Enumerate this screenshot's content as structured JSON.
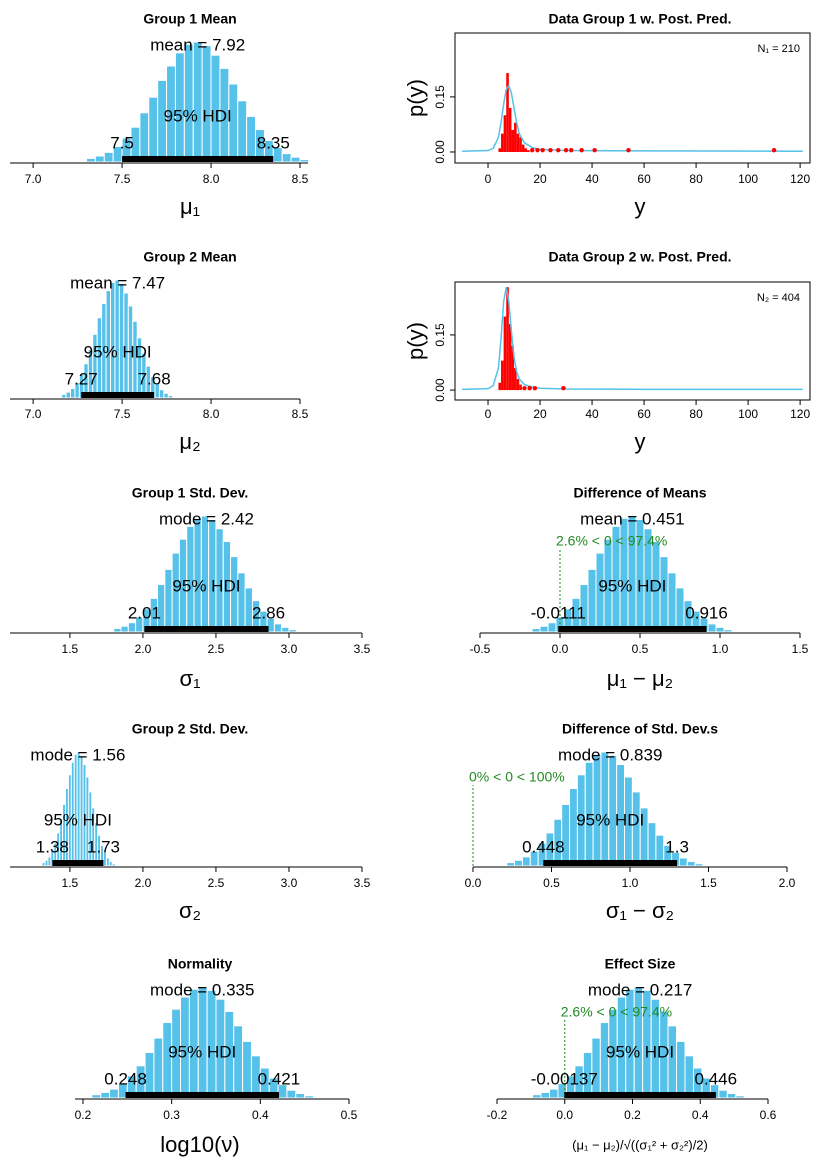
{
  "chart_data": [
    {
      "type": "histogram",
      "title": "Group 1 Mean",
      "xlabel": "μ₁",
      "color": "#56c1e9",
      "xlim": [
        6.87,
        8.545
      ],
      "xticks": [
        {
          "value": 7,
          "label": "7.0"
        },
        7.5,
        {
          "value": 8,
          "label": "8.0"
        },
        8.5
      ],
      "ylim": [
        0,
        100
      ],
      "bins": [
        7.3,
        7.35,
        7.4,
        7.45,
        7.5,
        7.55,
        7.6,
        7.65,
        7.7,
        7.75,
        7.8,
        7.85,
        7.9,
        7.95,
        8.0,
        8.05,
        8.1,
        8.15,
        8.2,
        8.25,
        8.3,
        8.35,
        8.4,
        8.45,
        8.5,
        8.55
      ],
      "counts": [
        3,
        5,
        8,
        13,
        20,
        29,
        41,
        54,
        68,
        80,
        91,
        98,
        100,
        97,
        89,
        78,
        65,
        51,
        38,
        27,
        18,
        12,
        7,
        4,
        2
      ],
      "center_label": "mean = 7.92",
      "hdi_label": "95% HDI",
      "hdi": [
        7.5,
        8.35
      ]
    },
    {
      "type": "predictive",
      "title": "Data Group 1 w. Post. Pred.",
      "xlabel": "y",
      "ylabel": "p(y)",
      "n_label": "N₁ = 210",
      "xlim": [
        -12.7,
        123.8
      ],
      "xticks": [
        0,
        20,
        40,
        60,
        80,
        100,
        120
      ],
      "ylim": [
        -0.03,
        0.324
      ],
      "yticks": [
        {
          "value": 0,
          "label": "0.00"
        },
        0.15
      ],
      "color": "#ff0000",
      "line_color": "#56c1e9",
      "bins": [
        4,
        5,
        6,
        7,
        8,
        9,
        10,
        11,
        12,
        13,
        14,
        15,
        16
      ],
      "counts": [
        0.01,
        0.05,
        0.1,
        0.215,
        0.12,
        0.06,
        0.08,
        0.05,
        0.04,
        0.02,
        0.01,
        0.005
      ],
      "points": {
        "x": [
          17,
          19,
          21,
          24,
          27,
          30,
          32,
          36,
          41,
          54,
          110
        ],
        "y": [
          0.005,
          0.005,
          0.005,
          0.005,
          0.005,
          0.005,
          0.005,
          0.005,
          0.005,
          0.005,
          0.005
        ]
      },
      "line": {
        "x": [
          -10,
          0,
          2,
          4,
          5,
          6,
          7,
          8,
          9,
          10,
          11,
          12,
          14,
          17,
          20,
          30,
          60,
          121
        ],
        "y": [
          0.002,
          0.004,
          0.01,
          0.04,
          0.08,
          0.13,
          0.17,
          0.18,
          0.16,
          0.12,
          0.08,
          0.05,
          0.025,
          0.012,
          0.007,
          0.004,
          0.003,
          0.002
        ]
      }
    },
    {
      "type": "histogram",
      "title": "Group 2 Mean",
      "xlabel": "μ₂",
      "color": "#56c1e9",
      "xlim": [
        6.87,
        8.5
      ],
      "xticks": [
        {
          "value": 7,
          "label": "7.0"
        },
        7.5,
        {
          "value": 8,
          "label": "8.0"
        },
        8.5
      ],
      "ylim": [
        0,
        100
      ],
      "bins": [
        7.16,
        7.185,
        7.21,
        7.235,
        7.26,
        7.285,
        7.31,
        7.335,
        7.36,
        7.385,
        7.41,
        7.435,
        7.46,
        7.485,
        7.51,
        7.535,
        7.56,
        7.585,
        7.61,
        7.635,
        7.66,
        7.685,
        7.71,
        7.735,
        7.76,
        7.785
      ],
      "counts": [
        3,
        5,
        8,
        13,
        20,
        29,
        41,
        54,
        68,
        80,
        91,
        98,
        100,
        97,
        89,
        78,
        65,
        51,
        38,
        27,
        18,
        12,
        7,
        4,
        2
      ],
      "center_label": "mean = 7.47",
      "hdi_label": "95% HDI",
      "hdi": [
        7.27,
        7.68
      ]
    },
    {
      "type": "predictive",
      "title": "Data Group 2 w. Post. Pred.",
      "xlabel": "y",
      "ylabel": "p(y)",
      "n_label": "N₂ = 404",
      "xlim": [
        -12.7,
        123.8
      ],
      "xticks": [
        0,
        20,
        40,
        60,
        80,
        100,
        120
      ],
      "ylim": [
        -0.027,
        0.294
      ],
      "yticks": [
        {
          "value": 0,
          "label": "0.00"
        },
        0.15
      ],
      "color": "#ff0000",
      "line_color": "#56c1e9",
      "bins": [
        4,
        5,
        6,
        7,
        8,
        9,
        10,
        11,
        12,
        13
      ],
      "counts": [
        0.02,
        0.08,
        0.2,
        0.28,
        0.18,
        0.12,
        0.06,
        0.03,
        0.015
      ],
      "points": {
        "x": [
          14,
          16,
          18,
          29
        ],
        "y": [
          0.005,
          0.005,
          0.005,
          0.005
        ]
      },
      "line": {
        "x": [
          -10,
          0,
          2,
          4,
          5,
          6,
          7,
          8,
          9,
          10,
          11,
          12,
          14,
          17,
          20,
          30,
          60,
          121
        ],
        "y": [
          0.002,
          0.004,
          0.012,
          0.06,
          0.14,
          0.24,
          0.28,
          0.24,
          0.16,
          0.09,
          0.05,
          0.03,
          0.015,
          0.008,
          0.005,
          0.003,
          0.002,
          0.002
        ]
      }
    },
    {
      "type": "histogram",
      "title": "Group 1 Std. Dev.",
      "xlabel": "σ₁",
      "color": "#56c1e9",
      "xlim": [
        1.09,
        3.5
      ],
      "xticks": [
        1.5,
        {
          "value": 2,
          "label": "2.0"
        },
        2.5,
        {
          "value": 3,
          "label": "3.0"
        },
        3.5
      ],
      "ylim": [
        0,
        100
      ],
      "bins": [
        1.8,
        1.85,
        1.9,
        1.95,
        2.0,
        2.05,
        2.1,
        2.15,
        2.2,
        2.25,
        2.3,
        2.35,
        2.4,
        2.45,
        2.5,
        2.55,
        2.6,
        2.65,
        2.7,
        2.75,
        2.8,
        2.85,
        2.9,
        2.95,
        3.0,
        3.05
      ],
      "counts": [
        3,
        5,
        8,
        13,
        20,
        29,
        41,
        54,
        68,
        80,
        91,
        98,
        100,
        97,
        89,
        78,
        65,
        51,
        38,
        27,
        18,
        12,
        7,
        4,
        2
      ],
      "center_label": "mode = 2.42",
      "hdi_label": "95% HDI",
      "hdi": [
        2.01,
        2.86
      ]
    },
    {
      "type": "histogram",
      "title": "Difference of Means",
      "xlabel": "μ₁ − μ₂",
      "color": "#56c1e9",
      "xlim": [
        -0.5,
        1.5
      ],
      "xticks": [
        -0.5,
        {
          "value": 0,
          "label": "0.0"
        },
        0.5,
        {
          "value": 1,
          "label": "1.0"
        },
        1.5
      ],
      "ylim": [
        0,
        100
      ],
      "bins": [
        -0.175,
        -0.125,
        -0.075,
        -0.025,
        0.025,
        0.075,
        0.125,
        0.175,
        0.225,
        0.275,
        0.325,
        0.375,
        0.425,
        0.475,
        0.525,
        0.575,
        0.625,
        0.675,
        0.725,
        0.775,
        0.825,
        0.875,
        0.925,
        0.975,
        1.025,
        1.075
      ],
      "counts": [
        3,
        5,
        8,
        13,
        20,
        29,
        41,
        54,
        68,
        80,
        91,
        98,
        100,
        97,
        89,
        78,
        65,
        51,
        38,
        27,
        18,
        12,
        7,
        4,
        2
      ],
      "center_label": "mean = 0.451",
      "hdi_label": "95% HDI",
      "hdi": [
        -0.0111,
        0.916
      ],
      "comp_value": 0,
      "comp_label": "2.6% < 0 < 97.4%"
    },
    {
      "type": "histogram",
      "title": "Group 2 Std. Dev.",
      "xlabel": "σ₂",
      "color": "#56c1e9",
      "xlim": [
        1.09,
        3.5
      ],
      "xticks": [
        1.5,
        {
          "value": 2,
          "label": "2.0"
        },
        2.5,
        {
          "value": 3,
          "label": "3.0"
        },
        3.5
      ],
      "ylim": [
        0,
        100
      ],
      "bins": [
        1.31,
        1.33,
        1.35,
        1.37,
        1.39,
        1.41,
        1.43,
        1.45,
        1.47,
        1.49,
        1.51,
        1.53,
        1.55,
        1.57,
        1.59,
        1.61,
        1.63,
        1.65,
        1.67,
        1.69,
        1.71,
        1.73,
        1.75,
        1.77,
        1.79,
        1.81
      ],
      "counts": [
        3,
        5,
        8,
        13,
        20,
        29,
        41,
        54,
        68,
        80,
        91,
        98,
        100,
        97,
        89,
        78,
        65,
        51,
        38,
        27,
        18,
        12,
        7,
        4,
        2
      ],
      "center_label": "mode = 1.56",
      "hdi_label": "95% HDI",
      "hdi": [
        1.38,
        1.73
      ]
    },
    {
      "type": "histogram",
      "title": "Difference of Std. Dev.s",
      "xlabel": "σ₁ − σ₂",
      "color": "#56c1e9",
      "xlim": [
        0,
        2
      ],
      "xticks": [
        {
          "value": 0,
          "label": "0.0"
        },
        0.5,
        {
          "value": 1,
          "label": "1.0"
        },
        1.5,
        {
          "value": 2,
          "label": "2.0"
        }
      ],
      "ylim": [
        0,
        100
      ],
      "bins": [
        0.215,
        0.265,
        0.315,
        0.365,
        0.415,
        0.465,
        0.515,
        0.565,
        0.615,
        0.665,
        0.715,
        0.765,
        0.815,
        0.865,
        0.915,
        0.965,
        1.015,
        1.065,
        1.115,
        1.165,
        1.215,
        1.265,
        1.315,
        1.365,
        1.415,
        1.465
      ],
      "counts": [
        3,
        5,
        8,
        13,
        20,
        29,
        41,
        54,
        68,
        80,
        91,
        98,
        100,
        97,
        89,
        78,
        65,
        51,
        38,
        27,
        18,
        12,
        7,
        4,
        2
      ],
      "center_label": "mode = 0.839",
      "hdi_label": "95% HDI",
      "hdi": [
        0.448,
        1.3
      ],
      "comp_value": 0,
      "comp_label": "0% < 0 < 100%"
    },
    {
      "type": "histogram",
      "title": "Normality",
      "xlabel": "log10(ν)",
      "color": "#56c1e9",
      "xlim": [
        0.191,
        0.5
      ],
      "xticks": [
        0.2,
        0.3,
        0.4,
        0.5
      ],
      "ylim": [
        0,
        100
      ],
      "bins": [
        0.21,
        0.22,
        0.23,
        0.24,
        0.25,
        0.26,
        0.27,
        0.28,
        0.29,
        0.3,
        0.31,
        0.32,
        0.33,
        0.34,
        0.35,
        0.36,
        0.37,
        0.38,
        0.39,
        0.4,
        0.41,
        0.42,
        0.43,
        0.44,
        0.45,
        0.46
      ],
      "counts": [
        3,
        5,
        8,
        13,
        20,
        29,
        41,
        54,
        68,
        80,
        91,
        98,
        100,
        97,
        89,
        78,
        65,
        51,
        38,
        27,
        18,
        12,
        7,
        4,
        2
      ],
      "center_label": "mode = 0.335",
      "hdi_label": "95% HDI",
      "hdi": [
        0.248,
        0.421
      ]
    },
    {
      "type": "histogram",
      "title": "Effect Size",
      "xlabel": "(μ₁ − μ₂)/√((σ₁² + σ₂²)/2)",
      "color": "#56c1e9",
      "xlim": [
        -0.2,
        0.6
      ],
      "xticks": [
        -0.2,
        {
          "value": 0,
          "label": "0.0"
        },
        0.2,
        0.4,
        0.6
      ],
      "ylim": [
        0,
        100
      ],
      "bins": [
        -0.095,
        -0.07,
        -0.045,
        -0.02,
        0.005,
        0.03,
        0.055,
        0.08,
        0.105,
        0.13,
        0.155,
        0.18,
        0.205,
        0.23,
        0.255,
        0.28,
        0.305,
        0.33,
        0.355,
        0.38,
        0.405,
        0.43,
        0.455,
        0.48,
        0.505,
        0.53
      ],
      "counts": [
        3,
        5,
        8,
        13,
        20,
        29,
        41,
        54,
        68,
        80,
        91,
        98,
        100,
        97,
        89,
        78,
        65,
        51,
        38,
        27,
        18,
        12,
        7,
        4,
        2
      ],
      "center_label": "mode = 0.217",
      "hdi_label": "95% HDI",
      "hdi": [
        -0.00137,
        0.446
      ],
      "comp_value": 0,
      "comp_label": "2.6% < 0 < 97.4%"
    }
  ]
}
